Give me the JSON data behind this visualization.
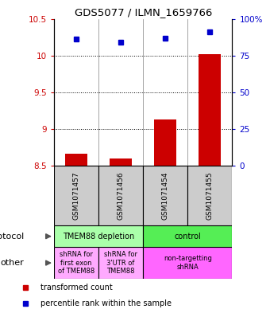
{
  "title": "GDS5077 / ILMN_1659766",
  "samples": [
    "GSM1071457",
    "GSM1071456",
    "GSM1071454",
    "GSM1071455"
  ],
  "bar_values": [
    8.67,
    8.6,
    9.13,
    10.02
  ],
  "bar_base": 8.5,
  "scatter_values": [
    10.22,
    10.18,
    10.24,
    10.32
  ],
  "ylim_left": [
    8.5,
    10.5
  ],
  "ylim_right": [
    0,
    100
  ],
  "yticks_left": [
    8.5,
    9.0,
    9.5,
    10.0,
    10.5
  ],
  "ytick_labels_left": [
    "8.5",
    "9",
    "9.5",
    "10",
    "10.5"
  ],
  "yticks_right": [
    0,
    25,
    50,
    75,
    100
  ],
  "ytick_labels_right": [
    "0",
    "25",
    "50",
    "75",
    "100%"
  ],
  "bar_color": "#cc0000",
  "scatter_color": "#0000cc",
  "protocol_row": [
    {
      "label": "TMEM88 depletion",
      "span": [
        0,
        2
      ],
      "color": "#aaffaa"
    },
    {
      "label": "control",
      "span": [
        2,
        4
      ],
      "color": "#55ee55"
    }
  ],
  "other_row": [
    {
      "label": "shRNA for\nfirst exon\nof TMEM88",
      "span": [
        0,
        1
      ],
      "color": "#ffaaff"
    },
    {
      "label": "shRNA for\n3'UTR of\nTMEM88",
      "span": [
        1,
        2
      ],
      "color": "#ffaaff"
    },
    {
      "label": "non-targetting\nshRNA",
      "span": [
        2,
        4
      ],
      "color": "#ff66ff"
    }
  ],
  "legend_items": [
    {
      "label": "transformed count",
      "color": "#cc0000"
    },
    {
      "label": "percentile rank within the sample",
      "color": "#0000cc"
    }
  ],
  "left_label_color": "#cc0000",
  "right_label_color": "#0000cc",
  "grid_dotted_values": [
    9.0,
    9.5,
    10.0
  ],
  "bar_width": 0.5
}
